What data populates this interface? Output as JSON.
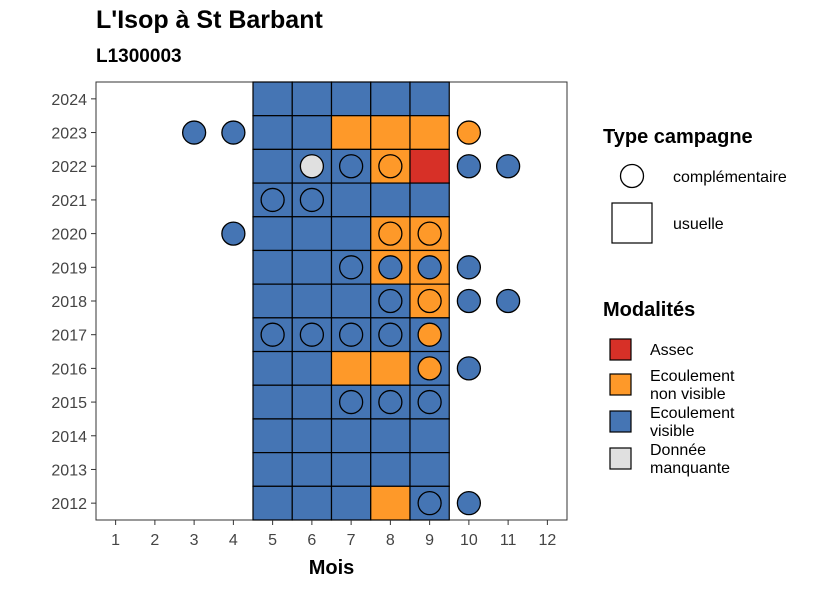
{
  "chart_data": {
    "type": "heatmap",
    "title": "L'Isop à St Barbant",
    "subtitle": "L1300003",
    "xlabel": "Mois",
    "ylabel": "",
    "x_ticks": [
      1,
      2,
      3,
      4,
      5,
      6,
      7,
      8,
      9,
      10,
      11,
      12
    ],
    "y_ticks": [
      2012,
      2013,
      2014,
      2015,
      2016,
      2017,
      2018,
      2019,
      2020,
      2021,
      2022,
      2023,
      2024
    ],
    "xlim": [
      0.5,
      12.5
    ],
    "ylim": [
      2011.5,
      2024.5
    ],
    "grid": false,
    "legend_position": "right",
    "colors": {
      "assec": "#d73027",
      "ecoulement_non_visible": "#fe9929",
      "ecoulement_visible": "#4575b4",
      "donnee_manquante": "#e0e0e0"
    },
    "legend_type": {
      "title": "Type campagne",
      "items": [
        {
          "key": "complementaire",
          "label": "complémentaire",
          "shape": "circle"
        },
        {
          "key": "usuelle",
          "label": "usuelle",
          "shape": "square"
        }
      ]
    },
    "legend_modalites": {
      "title": "Modalités",
      "items": [
        {
          "key": "assec",
          "label_lines": [
            "Assec"
          ],
          "color": "#d73027"
        },
        {
          "key": "ecoulement_non_visible",
          "label_lines": [
            "Ecoulement",
            "non visible"
          ],
          "color": "#fe9929"
        },
        {
          "key": "ecoulement_visible",
          "label_lines": [
            "Ecoulement",
            "visible"
          ],
          "color": "#4575b4"
        },
        {
          "key": "donnee_manquante",
          "label_lines": [
            "Donnée",
            "manquante"
          ],
          "color": "#e0e0e0"
        }
      ]
    },
    "usuelle": [
      {
        "year": 2024,
        "months": [
          5,
          6,
          7,
          8,
          9
        ],
        "values": [
          "V",
          "V",
          "V",
          "V",
          "V"
        ]
      },
      {
        "year": 2023,
        "months": [
          5,
          6,
          7,
          8,
          9
        ],
        "values": [
          "V",
          "V",
          "N",
          "N",
          "N"
        ]
      },
      {
        "year": 2022,
        "months": [
          5,
          6,
          7,
          8,
          9
        ],
        "values": [
          "V",
          "V",
          "V",
          "N",
          "A"
        ]
      },
      {
        "year": 2021,
        "months": [
          5,
          6,
          7,
          8,
          9
        ],
        "values": [
          "V",
          "V",
          "V",
          "V",
          "V"
        ]
      },
      {
        "year": 2020,
        "months": [
          5,
          6,
          7,
          8,
          9
        ],
        "values": [
          "V",
          "V",
          "V",
          "N",
          "N"
        ]
      },
      {
        "year": 2019,
        "months": [
          5,
          6,
          7,
          8,
          9
        ],
        "values": [
          "V",
          "V",
          "V",
          "N",
          "N"
        ]
      },
      {
        "year": 2018,
        "months": [
          5,
          6,
          7,
          8,
          9
        ],
        "values": [
          "V",
          "V",
          "V",
          "V",
          "N"
        ]
      },
      {
        "year": 2017,
        "months": [
          5,
          6,
          7,
          8,
          9
        ],
        "values": [
          "V",
          "V",
          "V",
          "V",
          "V"
        ]
      },
      {
        "year": 2016,
        "months": [
          5,
          6,
          7,
          8,
          9
        ],
        "values": [
          "V",
          "V",
          "N",
          "N",
          "V"
        ]
      },
      {
        "year": 2015,
        "months": [
          5,
          6,
          7,
          8,
          9
        ],
        "values": [
          "V",
          "V",
          "V",
          "V",
          "V"
        ]
      },
      {
        "year": 2014,
        "months": [
          5,
          6,
          7,
          8,
          9
        ],
        "values": [
          "V",
          "V",
          "V",
          "V",
          "V"
        ]
      },
      {
        "year": 2013,
        "months": [
          5,
          6,
          7,
          8,
          9
        ],
        "values": [
          "V",
          "V",
          "V",
          "V",
          "V"
        ]
      },
      {
        "year": 2012,
        "months": [
          5,
          6,
          7,
          8,
          9
        ],
        "values": [
          "V",
          "V",
          "V",
          "N",
          "V"
        ]
      }
    ],
    "complementaire": [
      {
        "year": 2023,
        "month": 3,
        "value": "V"
      },
      {
        "year": 2023,
        "month": 4,
        "value": "V"
      },
      {
        "year": 2023,
        "month": 10,
        "value": "N"
      },
      {
        "year": 2022,
        "month": 6,
        "value": "M"
      },
      {
        "year": 2022,
        "month": 7,
        "value": "V"
      },
      {
        "year": 2022,
        "month": 8,
        "value": "N"
      },
      {
        "year": 2022,
        "month": 10,
        "value": "V"
      },
      {
        "year": 2022,
        "month": 11,
        "value": "V"
      },
      {
        "year": 2021,
        "month": 5,
        "value": "V"
      },
      {
        "year": 2021,
        "month": 6,
        "value": "V"
      },
      {
        "year": 2020,
        "month": 4,
        "value": "V"
      },
      {
        "year": 2020,
        "month": 8,
        "value": "N"
      },
      {
        "year": 2020,
        "month": 9,
        "value": "N"
      },
      {
        "year": 2019,
        "month": 7,
        "value": "V"
      },
      {
        "year": 2019,
        "month": 8,
        "value": "V"
      },
      {
        "year": 2019,
        "month": 9,
        "value": "V"
      },
      {
        "year": 2019,
        "month": 10,
        "value": "V"
      },
      {
        "year": 2018,
        "month": 8,
        "value": "V"
      },
      {
        "year": 2018,
        "month": 9,
        "value": "N"
      },
      {
        "year": 2018,
        "month": 10,
        "value": "V"
      },
      {
        "year": 2018,
        "month": 11,
        "value": "V"
      },
      {
        "year": 2017,
        "month": 5,
        "value": "V"
      },
      {
        "year": 2017,
        "month": 6,
        "value": "V"
      },
      {
        "year": 2017,
        "month": 7,
        "value": "V"
      },
      {
        "year": 2017,
        "month": 8,
        "value": "V"
      },
      {
        "year": 2017,
        "month": 9,
        "value": "N"
      },
      {
        "year": 2016,
        "month": 9,
        "value": "N"
      },
      {
        "year": 2016,
        "month": 10,
        "value": "V"
      },
      {
        "year": 2015,
        "month": 7,
        "value": "V"
      },
      {
        "year": 2015,
        "month": 8,
        "value": "V"
      },
      {
        "year": 2015,
        "month": 9,
        "value": "V"
      },
      {
        "year": 2012,
        "month": 9,
        "value": "V"
      },
      {
        "year": 2012,
        "month": 10,
        "value": "V"
      }
    ],
    "value_codes": {
      "A": "assec",
      "N": "ecoulement_non_visible",
      "V": "ecoulement_visible",
      "M": "donnee_manquante"
    }
  }
}
